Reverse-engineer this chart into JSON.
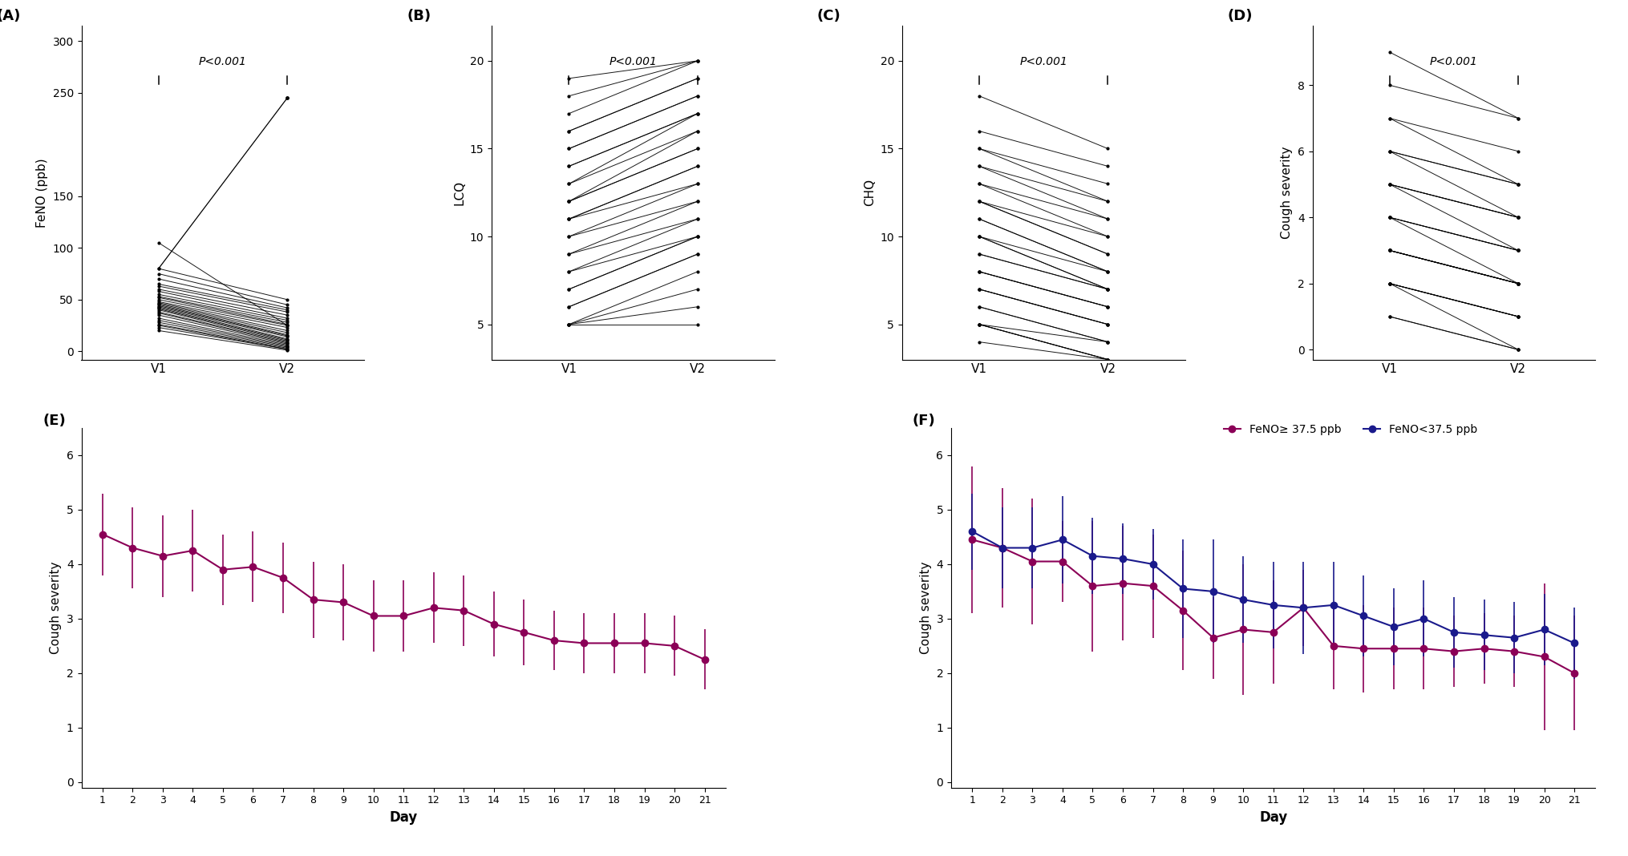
{
  "panel_A_label": "(A)",
  "panel_B_label": "(B)",
  "panel_C_label": "(C)",
  "panel_D_label": "(D)",
  "panel_E_label": "(E)",
  "panel_F_label": "(F)",
  "pvalue_text": "P<0.001",
  "A_ylabel": "FeNO (ppb)",
  "A_yticks": [
    0,
    50,
    100,
    150,
    250,
    300
  ],
  "A_ylim": [
    -8,
    315
  ],
  "A_xticks": [
    "V1",
    "V2"
  ],
  "A_v1": [
    105,
    80,
    75,
    70,
    65,
    63,
    60,
    58,
    55,
    53,
    52,
    50,
    48,
    47,
    46,
    45,
    44,
    43,
    42,
    41,
    40,
    38,
    37,
    35,
    32,
    30,
    28,
    26,
    25,
    23,
    20
  ],
  "A_v2": [
    25,
    50,
    45,
    42,
    40,
    38,
    35,
    32,
    30,
    28,
    26,
    25,
    23,
    20,
    18,
    16,
    15,
    14,
    12,
    11,
    10,
    9,
    8,
    7,
    6,
    5,
    4,
    3,
    2,
    2,
    1
  ],
  "A_outlier_v1": 80,
  "A_outlier_v2": 245,
  "B_ylabel": "LCQ",
  "B_yticks": [
    5,
    10,
    15,
    20
  ],
  "B_ylim": [
    3,
    22
  ],
  "B_xticks": [
    "V1",
    "V2"
  ],
  "B_v1": [
    5,
    5,
    5,
    5,
    6,
    6,
    7,
    7,
    8,
    8,
    9,
    9,
    10,
    10,
    11,
    11,
    11,
    12,
    12,
    12,
    13,
    13,
    14,
    14,
    15,
    15,
    16,
    16,
    17,
    18,
    19
  ],
  "B_v2": [
    5,
    6,
    7,
    8,
    9,
    9,
    10,
    10,
    10,
    11,
    11,
    12,
    12,
    13,
    13,
    14,
    14,
    15,
    15,
    16,
    16,
    17,
    17,
    17,
    18,
    18,
    19,
    19,
    20,
    20,
    20
  ],
  "C_ylabel": "CHQ",
  "C_yticks": [
    5,
    10,
    15,
    20
  ],
  "C_ylim": [
    3,
    22
  ],
  "C_xticks": [
    "V1",
    "V2"
  ],
  "C_v1": [
    18,
    16,
    15,
    15,
    14,
    14,
    13,
    13,
    12,
    12,
    12,
    11,
    11,
    10,
    10,
    10,
    9,
    9,
    8,
    8,
    8,
    7,
    7,
    7,
    6,
    6,
    5,
    5,
    5,
    5,
    4
  ],
  "C_v2": [
    15,
    14,
    13,
    12,
    12,
    11,
    11,
    10,
    10,
    9,
    9,
    8,
    8,
    8,
    7,
    7,
    7,
    7,
    6,
    6,
    6,
    5,
    5,
    5,
    4,
    4,
    4,
    3,
    3,
    3,
    3
  ],
  "D_ylabel": "Cough severity",
  "D_yticks": [
    0,
    2,
    4,
    6,
    8
  ],
  "D_ylim": [
    -0.3,
    9.8
  ],
  "D_xticks": [
    "V1",
    "V2"
  ],
  "D_v1": [
    9,
    8,
    7,
    7,
    6,
    6,
    6,
    5,
    5,
    5,
    5,
    4,
    4,
    4,
    4,
    3,
    3,
    3,
    3,
    3,
    3,
    2,
    2,
    2,
    2,
    2,
    1,
    1
  ],
  "D_v2": [
    7,
    7,
    6,
    5,
    5,
    5,
    4,
    4,
    4,
    4,
    3,
    3,
    3,
    3,
    2,
    2,
    2,
    2,
    2,
    2,
    2,
    1,
    1,
    1,
    1,
    0,
    0,
    0
  ],
  "E_ylabel": "Cough severity",
  "E_xlabel": "Day",
  "E_days": [
    1,
    2,
    3,
    4,
    5,
    6,
    7,
    8,
    9,
    10,
    11,
    12,
    13,
    14,
    15,
    16,
    17,
    18,
    19,
    20,
    21
  ],
  "E_mean": [
    4.55,
    4.3,
    4.15,
    4.25,
    3.9,
    3.95,
    3.75,
    3.35,
    3.3,
    3.05,
    3.05,
    3.2,
    3.15,
    2.9,
    2.75,
    2.6,
    2.55,
    2.55,
    2.55,
    2.5,
    2.25
  ],
  "E_sd": [
    0.75,
    0.75,
    0.75,
    0.75,
    0.65,
    0.65,
    0.65,
    0.7,
    0.7,
    0.65,
    0.65,
    0.65,
    0.65,
    0.6,
    0.6,
    0.55,
    0.55,
    0.55,
    0.55,
    0.55,
    0.55
  ],
  "E_color": "#8B0057",
  "E_ylim": [
    -0.1,
    6.5
  ],
  "E_yticks": [
    0,
    1,
    2,
    3,
    4,
    5,
    6
  ],
  "F_ylabel": "Cough severity",
  "F_xlabel": "Day",
  "F_days": [
    1,
    2,
    3,
    4,
    5,
    6,
    7,
    8,
    9,
    10,
    11,
    12,
    13,
    14,
    15,
    16,
    17,
    18,
    19,
    20,
    21
  ],
  "F_mean_high": [
    4.45,
    4.3,
    4.05,
    4.05,
    3.6,
    3.65,
    3.6,
    3.15,
    2.65,
    2.8,
    2.75,
    3.2,
    2.5,
    2.45,
    2.45,
    2.45,
    2.4,
    2.45,
    2.4,
    2.3,
    2.0
  ],
  "F_sd_high": [
    1.35,
    1.1,
    1.15,
    0.75,
    1.2,
    1.05,
    0.95,
    1.1,
    0.75,
    1.2,
    0.95,
    0.7,
    0.8,
    0.8,
    0.75,
    0.75,
    0.65,
    0.65,
    0.65,
    1.35,
    1.05
  ],
  "F_mean_low": [
    4.6,
    4.3,
    4.3,
    4.45,
    4.15,
    4.1,
    4.0,
    3.55,
    3.5,
    3.35,
    3.25,
    3.2,
    3.25,
    3.05,
    2.85,
    3.0,
    2.75,
    2.7,
    2.65,
    2.8,
    2.55
  ],
  "F_sd_low": [
    0.7,
    0.75,
    0.75,
    0.8,
    0.7,
    0.65,
    0.65,
    0.9,
    0.95,
    0.8,
    0.8,
    0.85,
    0.8,
    0.75,
    0.7,
    0.7,
    0.65,
    0.65,
    0.65,
    0.65,
    0.65
  ],
  "F_color_high": "#8B0057",
  "F_color_low": "#1a1a8c",
  "F_ylim": [
    -0.1,
    6.5
  ],
  "F_yticks": [
    0,
    1,
    2,
    3,
    4,
    5,
    6
  ],
  "F_legend_high": "FeNO≥ 37.5 ppb",
  "F_legend_low": "FeNO<37.5 ppb",
  "background_color": "#ffffff"
}
